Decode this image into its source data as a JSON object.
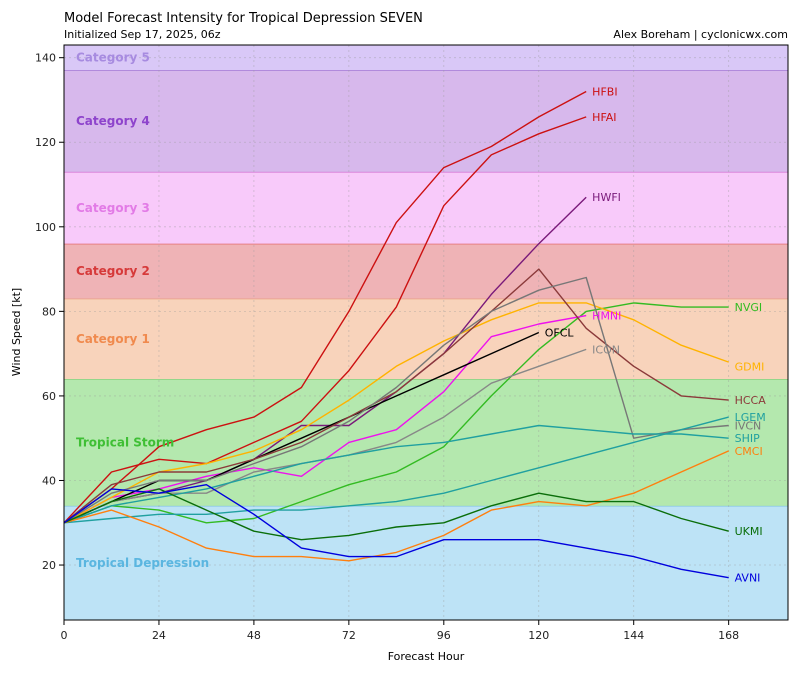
{
  "chart_data": {
    "type": "line",
    "title": "Model Forecast Intensity for Tropical Depression SEVEN",
    "subtitle": "Initialized Sep 17, 2025, 06z",
    "credit": "Alex Boreham | cyclonicwx.com",
    "xlabel": "Forecast Hour",
    "ylabel": "Wind Speed [kt]",
    "xlim": [
      0,
      183
    ],
    "ylim": [
      7,
      143
    ],
    "xticks": [
      0,
      24,
      48,
      72,
      96,
      120,
      144,
      168
    ],
    "yticks": [
      20,
      40,
      60,
      80,
      100,
      120,
      140
    ],
    "grid": true,
    "bands": [
      {
        "label": "Tropical Depression",
        "from": 7,
        "to": 34,
        "fill": "#bde3f6",
        "edge": "#7ec1e0",
        "text": "#5bb6e0"
      },
      {
        "label": "Tropical Storm",
        "from": 34,
        "to": 64,
        "fill": "#b4e8ae",
        "edge": "#7fcc75",
        "text": "#3fbf35"
      },
      {
        "label": "Category 1",
        "from": 64,
        "to": 83,
        "fill": "#f8d3bb",
        "edge": "#e89a72",
        "text": "#f08a4e"
      },
      {
        "label": "Category 2",
        "from": 83,
        "to": 96,
        "fill": "#efb3b6",
        "edge": "#e06060",
        "text": "#d63a3a"
      },
      {
        "label": "Category 3",
        "from": 96,
        "to": 113,
        "fill": "#f8cafa",
        "edge": "#cc66cc",
        "text": "#e27be6"
      },
      {
        "label": "Category 4",
        "from": 113,
        "to": 137,
        "fill": "#d7b8ec",
        "edge": "#9a66cc",
        "text": "#8e44cc"
      },
      {
        "label": "Category 5",
        "from": 137,
        "to": 143,
        "fill": "#d9c8f7",
        "edge": "#a78be0",
        "text": "#a78be0"
      }
    ],
    "series": [
      {
        "name": "HFBI",
        "color": "#cc1111",
        "x": [
          0,
          12,
          24,
          36,
          48,
          60,
          72,
          84,
          96,
          108,
          120,
          132
        ],
        "values": [
          30,
          38,
          48,
          52,
          55,
          62,
          80,
          101,
          114,
          119,
          126,
          132
        ]
      },
      {
        "name": "HFAI",
        "color": "#cc1111",
        "x": [
          0,
          12,
          24,
          36,
          48,
          60,
          72,
          84,
          96,
          108,
          120,
          132
        ],
        "values": [
          30,
          42,
          45,
          44,
          49,
          54,
          66,
          81,
          105,
          117,
          122,
          126
        ]
      },
      {
        "name": "HWFI",
        "color": "#7a1a7a",
        "x": [
          0,
          12,
          24,
          36,
          48,
          60,
          72,
          84,
          96,
          108,
          120,
          132
        ],
        "values": [
          30,
          35,
          37,
          40,
          45,
          53,
          53,
          61,
          70,
          84,
          96,
          107
        ]
      },
      {
        "name": "NVGI",
        "color": "#33bb22",
        "x": [
          0,
          12,
          24,
          36,
          48,
          60,
          72,
          84,
          96,
          108,
          120,
          132,
          144,
          156,
          168
        ],
        "values": [
          30,
          34,
          33,
          30,
          31,
          35,
          39,
          42,
          48,
          60,
          71,
          80,
          82,
          81,
          81
        ]
      },
      {
        "name": "HMNI",
        "color": "#ee11ee",
        "x": [
          0,
          12,
          24,
          36,
          48,
          60,
          72,
          84,
          96,
          108,
          120,
          132
        ],
        "values": [
          30,
          36,
          38,
          41,
          43,
          41,
          49,
          52,
          61,
          74,
          77,
          79
        ]
      },
      {
        "name": "OFCL",
        "color": "#000000",
        "x": [
          0,
          12,
          24,
          36,
          48,
          60,
          72,
          96,
          120
        ],
        "values": [
          30,
          35,
          40,
          40,
          45,
          50,
          55,
          65,
          75
        ]
      },
      {
        "name": "ICON",
        "color": "#888888",
        "x": [
          0,
          12,
          24,
          36,
          48,
          60,
          72,
          84,
          96,
          108,
          120,
          132
        ],
        "values": [
          30,
          35,
          37,
          37,
          42,
          44,
          46,
          49,
          55,
          63,
          67,
          71
        ]
      },
      {
        "name": "GDMI",
        "color": "#ffb300",
        "x": [
          0,
          12,
          24,
          36,
          48,
          60,
          72,
          84,
          96,
          108,
          120,
          132,
          144,
          156,
          168
        ],
        "values": [
          30,
          36,
          42,
          44,
          47,
          52,
          59,
          67,
          73,
          78,
          82,
          82,
          78,
          72,
          68
        ]
      },
      {
        "name": "HCCA",
        "color": "#8b3a3a",
        "x": [
          0,
          12,
          24,
          36,
          48,
          60,
          72,
          84,
          96,
          108,
          120,
          132,
          144,
          156,
          168
        ],
        "values": [
          30,
          39,
          42,
          42,
          45,
          49,
          55,
          61,
          70,
          80,
          90,
          76,
          67,
          60,
          59
        ]
      },
      {
        "name": "IVCN",
        "color": "#777777",
        "x": [
          0,
          12,
          24,
          36,
          48,
          60,
          72,
          84,
          96,
          108,
          120,
          132,
          144,
          156,
          168
        ],
        "values": [
          30,
          37,
          40,
          40,
          44,
          48,
          54,
          62,
          72,
          80,
          85,
          88,
          50,
          52,
          53
        ]
      },
      {
        "name": "LGEM",
        "color": "#20a0a0",
        "x": [
          0,
          12,
          24,
          36,
          48,
          60,
          72,
          84,
          96,
          108,
          120,
          132,
          144,
          156,
          168
        ],
        "values": [
          30,
          31,
          32,
          32,
          33,
          33,
          34,
          35,
          37,
          40,
          43,
          46,
          49,
          52,
          55
        ]
      },
      {
        "name": "SHIP",
        "color": "#20a0a0",
        "x": [
          0,
          12,
          24,
          36,
          48,
          60,
          72,
          84,
          96,
          108,
          120,
          132,
          144,
          156,
          168
        ],
        "values": [
          30,
          34,
          36,
          38,
          41,
          44,
          46,
          48,
          49,
          51,
          53,
          52,
          51,
          51,
          50
        ]
      },
      {
        "name": "CMCI",
        "color": "#ff7f0e",
        "x": [
          0,
          12,
          24,
          36,
          48,
          60,
          72,
          84,
          96,
          108,
          120,
          132,
          144,
          156,
          168
        ],
        "values": [
          30,
          33,
          29,
          24,
          22,
          22,
          21,
          23,
          27,
          33,
          35,
          34,
          37,
          42,
          47
        ]
      },
      {
        "name": "UKMI",
        "color": "#0a6e0a",
        "x": [
          0,
          12,
          24,
          36,
          48,
          60,
          72,
          84,
          96,
          108,
          120,
          132,
          144,
          156,
          168
        ],
        "values": [
          30,
          35,
          38,
          33,
          28,
          26,
          27,
          29,
          30,
          34,
          37,
          35,
          35,
          31,
          28
        ]
      },
      {
        "name": "AVNI",
        "color": "#0000dd",
        "x": [
          0,
          12,
          24,
          36,
          48,
          60,
          72,
          84,
          96,
          108,
          120,
          132,
          144,
          156,
          168
        ],
        "values": [
          30,
          38,
          37,
          39,
          32,
          24,
          22,
          22,
          26,
          26,
          26,
          24,
          22,
          19,
          17
        ]
      }
    ],
    "labels": [
      {
        "name": "HFBI",
        "x": 133,
        "y": 132
      },
      {
        "name": "HFAI",
        "x": 133,
        "y": 126
      },
      {
        "name": "HWFI",
        "x": 133,
        "y": 107
      },
      {
        "name": "NVGI",
        "x": 169,
        "y": 81
      },
      {
        "name": "HMNI",
        "x": 133,
        "y": 79
      },
      {
        "name": "OFCL",
        "x": 121,
        "y": 75
      },
      {
        "name": "ICON",
        "x": 133,
        "y": 71
      },
      {
        "name": "GDMI",
        "x": 169,
        "y": 67
      },
      {
        "name": "HCCA",
        "x": 169,
        "y": 59
      },
      {
        "name": "LGEM",
        "x": 169,
        "y": 55
      },
      {
        "name": "IVCN",
        "x": 169,
        "y": 53
      },
      {
        "name": "SHIP",
        "x": 169,
        "y": 50
      },
      {
        "name": "CMCI",
        "x": 169,
        "y": 47
      },
      {
        "name": "UKMI",
        "x": 169,
        "y": 28
      },
      {
        "name": "AVNI",
        "x": 169,
        "y": 17
      }
    ]
  }
}
